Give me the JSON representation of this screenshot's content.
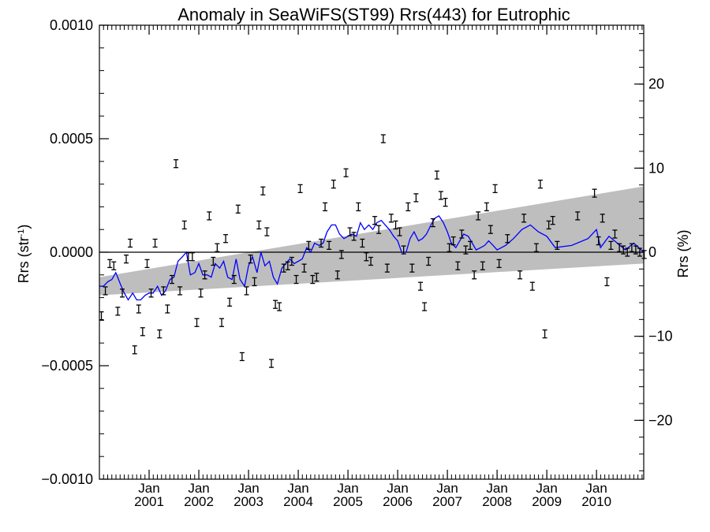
{
  "colors": {
    "background": "#ffffff",
    "band": "#bebebe",
    "line": "#0000ff",
    "axes": "#000000"
  },
  "chart_data": {
    "type": "line",
    "title": "Anomaly in SeaWiFS(ST99) Rrs(443) for Eutrophic",
    "ylabel_left": "Rrs (str",
    "ylabel_left_sup": "-1",
    "ylabel_left_close": ")",
    "ylabel_right": "Rrs (%)",
    "xlim": [
      2000.0,
      2010.95
    ],
    "ylim": [
      -0.001,
      0.001
    ],
    "ylim_right": [
      -27,
      27
    ],
    "left_ticks": [
      {
        "value": -0.001,
        "label": "−0.0010"
      },
      {
        "value": -0.0005,
        "label": "−0.0005"
      },
      {
        "value": 0.0,
        "label": "0.0000"
      },
      {
        "value": 0.0005,
        "label": "0.0005"
      },
      {
        "value": 0.001,
        "label": "0.0010"
      }
    ],
    "right_ticks": [
      {
        "value": -20,
        "label": "−20"
      },
      {
        "value": -10,
        "label": "−10"
      },
      {
        "value": 0,
        "label": "0"
      },
      {
        "value": 10,
        "label": "10"
      },
      {
        "value": 20,
        "label": "20"
      }
    ],
    "x_ticks": [
      {
        "value": 2001.0,
        "month": "Jan",
        "year": "2001"
      },
      {
        "value": 2002.0,
        "month": "Jan",
        "year": "2002"
      },
      {
        "value": 2003.0,
        "month": "Jan",
        "year": "2003"
      },
      {
        "value": 2004.0,
        "month": "Jan",
        "year": "2004"
      },
      {
        "value": 2005.0,
        "month": "Jan",
        "year": "2005"
      },
      {
        "value": 2006.0,
        "month": "Jan",
        "year": "2006"
      },
      {
        "value": 2007.0,
        "month": "Jan",
        "year": "2007"
      },
      {
        "value": 2008.0,
        "month": "Jan",
        "year": "2008"
      },
      {
        "value": 2009.0,
        "month": "Jan",
        "year": "2009"
      },
      {
        "value": 2010.0,
        "month": "Jan",
        "year": "2010"
      }
    ],
    "trend_band": {
      "x": [
        2000.0,
        2010.95
      ],
      "upper": [
        -0.00011,
        0.00029
      ],
      "lower": [
        -0.00019,
        -5e-05
      ]
    },
    "reference_line_y": 0.0,
    "monthly_points": {
      "x": [
        2000.04,
        2000.12,
        2000.21,
        2000.29,
        2000.37,
        2000.46,
        2000.54,
        2000.62,
        2000.71,
        2000.79,
        2000.87,
        2000.96,
        2001.04,
        2001.12,
        2001.21,
        2001.29,
        2001.37,
        2001.46,
        2001.54,
        2001.62,
        2001.71,
        2001.79,
        2001.87,
        2001.96,
        2002.04,
        2002.12,
        2002.21,
        2002.29,
        2002.37,
        2002.46,
        2002.54,
        2002.62,
        2002.71,
        2002.79,
        2002.87,
        2002.96,
        2003.04,
        2003.12,
        2003.21,
        2003.29,
        2003.37,
        2003.46,
        2003.54,
        2003.62,
        2003.71,
        2003.79,
        2003.87,
        2003.96,
        2004.04,
        2004.12,
        2004.21,
        2004.29,
        2004.37,
        2004.46,
        2004.54,
        2004.62,
        2004.71,
        2004.79,
        2004.87,
        2004.96,
        2005.04,
        2005.12,
        2005.21,
        2005.29,
        2005.37,
        2005.46,
        2005.54,
        2005.62,
        2005.71,
        2005.79,
        2005.87,
        2005.96,
        2006.04,
        2006.12,
        2006.21,
        2006.29,
        2006.37,
        2006.46,
        2006.54,
        2006.62,
        2006.71,
        2006.79,
        2006.87,
        2006.96,
        2007.04,
        2007.12,
        2007.21,
        2007.29,
        2007.37,
        2007.46,
        2007.54,
        2007.62,
        2007.71,
        2007.79,
        2007.87,
        2007.96,
        2008.04,
        2008.21,
        2008.46,
        2008.54,
        2008.71,
        2008.79,
        2008.87,
        2008.96,
        2009.04,
        2009.12,
        2009.21,
        2009.62,
        2009.96,
        2010.04,
        2010.12,
        2010.21,
        2010.29,
        2010.37,
        2010.46,
        2010.54,
        2010.62,
        2010.71,
        2010.79,
        2010.87,
        2010.96
      ],
      "y": [
        -0.00028,
        -0.00017,
        -5e-05,
        -6e-05,
        -0.00026,
        -0.00018,
        -3e-05,
        4e-05,
        -0.00043,
        -0.00025,
        -0.00035,
        -5e-05,
        -0.00018,
        4e-05,
        -0.00036,
        -0.00017,
        -0.00025,
        -0.00012,
        0.00039,
        -0.00017,
        0.00012,
        -2e-05,
        -2e-05,
        -0.00031,
        -0.00018,
        -0.0001,
        0.00016,
        -4e-05,
        2e-05,
        -0.00031,
        6e-05,
        -0.00022,
        -0.00012,
        0.00019,
        -0.00046,
        -0.00017,
        -3e-05,
        -0.00013,
        0.00012,
        0.00027,
        9e-05,
        -0.00049,
        -0.00023,
        -0.00024,
        -7e-05,
        -6e-05,
        -4e-05,
        -0.00012,
        0.00028,
        -7e-05,
        3e-05,
        -0.00012,
        -0.00011,
        4e-05,
        0.0002,
        3e-05,
        0.0003,
        -0.0001,
        -1e-05,
        0.00035,
        9e-05,
        7e-05,
        0.0002,
        4e-05,
        -2e-05,
        -4e-05,
        0.00014,
        0.0001,
        0.0005,
        -7e-05,
        0.00015,
        0.00012,
        9e-05,
        1e-05,
        0.0002,
        -7e-05,
        0.00024,
        -0.00015,
        -0.00024,
        -4e-05,
        0.00013,
        0.00034,
        0.00025,
        0.00022,
        2e-05,
        5e-05,
        -6e-05,
        8e-05,
        1e-05,
        3e-05,
        -0.0001,
        0.00016,
        -6e-05,
        0.0002,
        0.0001,
        0.00028,
        -5e-05,
        6e-05,
        -0.0001,
        0.00015,
        -0.00015,
        2e-05,
        0.0003,
        -0.00036,
        0.00012,
        0.00014,
        3e-05,
        0.00016,
        0.00026,
        5e-05,
        0.00015,
        -0.00013,
        3e-05,
        8e-05,
        2e-05,
        1e-05,
        0.0,
        2e-05,
        1e-05,
        0.0,
        -1e-05
      ]
    },
    "smoothed_series": {
      "x": [
        2000.0,
        2000.08,
        2000.17,
        2000.25,
        2000.33,
        2000.42,
        2000.5,
        2000.58,
        2000.67,
        2000.75,
        2000.83,
        2000.92,
        2001.0,
        2001.08,
        2001.17,
        2001.25,
        2001.33,
        2001.42,
        2001.5,
        2001.58,
        2001.67,
        2001.75,
        2001.83,
        2001.92,
        2002.0,
        2002.08,
        2002.17,
        2002.25,
        2002.33,
        2002.42,
        2002.5,
        2002.58,
        2002.67,
        2002.75,
        2002.83,
        2002.92,
        2003.0,
        2003.08,
        2003.17,
        2003.25,
        2003.33,
        2003.42,
        2003.5,
        2003.58,
        2003.67,
        2003.75,
        2003.83,
        2003.92,
        2004.0,
        2004.08,
        2004.17,
        2004.25,
        2004.33,
        2004.42,
        2004.5,
        2004.58,
        2004.67,
        2004.75,
        2004.83,
        2004.92,
        2005.0,
        2005.08,
        2005.17,
        2005.25,
        2005.33,
        2005.42,
        2005.5,
        2005.58,
        2005.67,
        2005.75,
        2005.83,
        2005.92,
        2006.0,
        2006.08,
        2006.17,
        2006.25,
        2006.33,
        2006.42,
        2006.5,
        2006.58,
        2006.67,
        2006.75,
        2006.83,
        2006.92,
        2007.0,
        2007.08,
        2007.17,
        2007.25,
        2007.33,
        2007.42,
        2007.5,
        2007.58,
        2007.67,
        2007.75,
        2007.83,
        2007.92,
        2008.0,
        2008.17,
        2008.33,
        2008.5,
        2008.67,
        2008.83,
        2009.0,
        2009.17,
        2009.5,
        2009.83,
        2010.0,
        2010.08,
        2010.25,
        2010.42,
        2010.58,
        2010.75,
        2010.95
      ],
      "y": [
        -0.00015,
        -0.00015,
        -0.00013,
        -0.00012,
        -9e-05,
        -0.00014,
        -0.00018,
        -0.00021,
        -0.00018,
        -0.00021,
        -0.00021,
        -0.00019,
        -0.00018,
        -0.00018,
        -0.00015,
        -0.00019,
        -0.00017,
        -0.00012,
        -0.00011,
        -4e-05,
        -2e-05,
        0.0,
        -0.0001,
        -9e-05,
        -5e-05,
        -0.0001,
        -0.0001,
        -0.00011,
        -5e-05,
        -7e-05,
        -4e-05,
        -0.00011,
        -0.00012,
        -3e-05,
        -0.00012,
        -0.00015,
        -6e-05,
        -2e-05,
        -9e-05,
        0.0,
        -6e-05,
        -4e-05,
        -0.00011,
        -0.00014,
        -7e-05,
        -5e-05,
        -3e-05,
        -5e-05,
        -4e-05,
        -3e-05,
        2e-05,
        0.0,
        4e-05,
        3e-05,
        4e-05,
        9e-05,
        0.00012,
        0.00012,
        8e-05,
        6e-05,
        7e-05,
        8e-05,
        7e-05,
        0.00013,
        0.0001,
        0.00012,
        0.0001,
        0.00013,
        0.00014,
        0.00012,
        0.0001,
        7e-05,
        5e-05,
        0.0,
        0.0,
        6e-05,
        9e-05,
        5e-05,
        6e-05,
        8e-05,
        0.00012,
        0.00015,
        0.00016,
        0.00013,
        9e-05,
        4e-05,
        2e-05,
        5e-05,
        8e-05,
        7e-05,
        4e-05,
        1e-05,
        2e-05,
        3e-05,
        5e-05,
        3e-05,
        1e-05,
        3e-05,
        6e-05,
        0.0001,
        0.00012,
        9e-05,
        7e-05,
        2e-05,
        3e-05,
        6e-05,
        0.0001,
        2e-05,
        7e-05,
        4e-05,
        1e-05,
        4e-05,
        0.0
      ]
    }
  }
}
